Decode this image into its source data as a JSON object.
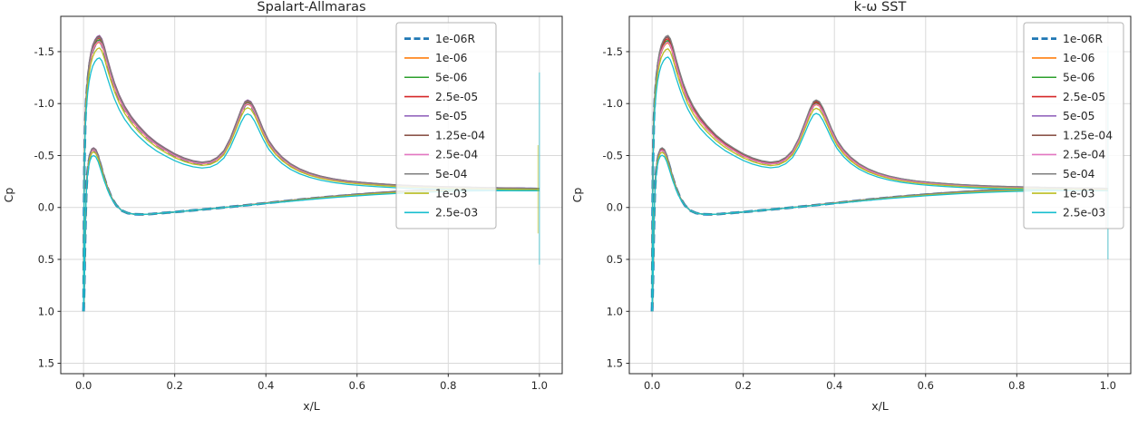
{
  "chart_data": [
    {
      "type": "line",
      "title": "Spalart-Allmaras",
      "xlabel": "x/L",
      "ylabel": "Cp",
      "grid": true,
      "y_inverted": true,
      "xlim": [
        -0.05,
        1.05
      ],
      "ylim": [
        -1.84,
        1.6
      ],
      "xticks": [
        0.0,
        0.2,
        0.4,
        0.6,
        0.8,
        1.0
      ],
      "xtick_labels": [
        "0.0",
        "0.2",
        "0.4",
        "0.6",
        "0.8",
        "1.0"
      ],
      "yticks": [
        -1.5,
        -1.0,
        -0.5,
        0.0,
        0.5,
        1.0,
        1.5
      ],
      "ytick_labels": [
        "-1.5",
        "-1.0",
        "-0.5",
        "0.0",
        "0.5",
        "1.0",
        "1.5"
      ],
      "legend": {
        "loc": "upper right",
        "right_gap": 73,
        "top_gap": 7
      },
      "series": [
        {
          "name": "1e-06R",
          "color": "#1f77b4",
          "line_style": "dashed",
          "line_width": 2.8,
          "scale": 1.0
        },
        {
          "name": "1e-06",
          "color": "#ff7f0e",
          "line_style": "solid",
          "line_width": 1.3,
          "scale": 0.995
        },
        {
          "name": "5e-06",
          "color": "#2ca02c",
          "line_style": "solid",
          "line_width": 1.3,
          "scale": 1.01
        },
        {
          "name": "2.5e-05",
          "color": "#d62728",
          "line_style": "solid",
          "line_width": 1.3,
          "scale": 1.02
        },
        {
          "name": "5e-05",
          "color": "#9467bd",
          "line_style": "solid",
          "line_width": 1.3,
          "scale": 1.035
        },
        {
          "name": "1.25e-04",
          "color": "#8c564b",
          "line_style": "solid",
          "line_width": 1.3,
          "scale": 1.03
        },
        {
          "name": "2.5e-04",
          "color": "#e377c2",
          "line_style": "solid",
          "line_width": 1.3,
          "scale": 1.0
        },
        {
          "name": "5e-04",
          "color": "#7f7f7f",
          "line_style": "solid",
          "line_width": 1.3,
          "scale": 1.025
        },
        {
          "name": "1e-03",
          "color": "#bcbd22",
          "line_style": "solid",
          "line_width": 1.3,
          "scale": 0.96
        },
        {
          "name": "2.5e-03",
          "color": "#17becf",
          "line_style": "solid",
          "line_width": 1.3,
          "scale": 0.9
        }
      ],
      "curves": {
        "upper": [
          [
            0.0,
            1.0
          ],
          [
            0.0005,
            0.55
          ],
          [
            0.001,
            0.1
          ],
          [
            0.002,
            -0.45
          ],
          [
            0.004,
            -0.85
          ],
          [
            0.006,
            -1.05
          ],
          [
            0.009,
            -1.22
          ],
          [
            0.012,
            -1.34
          ],
          [
            0.016,
            -1.44
          ],
          [
            0.02,
            -1.51
          ],
          [
            0.025,
            -1.56
          ],
          [
            0.03,
            -1.59
          ],
          [
            0.035,
            -1.6
          ],
          [
            0.04,
            -1.57
          ],
          [
            0.046,
            -1.49
          ],
          [
            0.052,
            -1.39
          ],
          [
            0.06,
            -1.27
          ],
          [
            0.068,
            -1.16
          ],
          [
            0.078,
            -1.05
          ],
          [
            0.09,
            -0.945
          ],
          [
            0.105,
            -0.845
          ],
          [
            0.12,
            -0.765
          ],
          [
            0.14,
            -0.675
          ],
          [
            0.16,
            -0.605
          ],
          [
            0.18,
            -0.55
          ],
          [
            0.2,
            -0.5
          ],
          [
            0.22,
            -0.462
          ],
          [
            0.24,
            -0.435
          ],
          [
            0.26,
            -0.422
          ],
          [
            0.278,
            -0.432
          ],
          [
            0.293,
            -0.465
          ],
          [
            0.308,
            -0.53
          ],
          [
            0.322,
            -0.645
          ],
          [
            0.335,
            -0.79
          ],
          [
            0.346,
            -0.915
          ],
          [
            0.354,
            -0.985
          ],
          [
            0.36,
            -1.0
          ],
          [
            0.367,
            -0.985
          ],
          [
            0.375,
            -0.925
          ],
          [
            0.384,
            -0.835
          ],
          [
            0.394,
            -0.73
          ],
          [
            0.406,
            -0.625
          ],
          [
            0.42,
            -0.54
          ],
          [
            0.436,
            -0.468
          ],
          [
            0.454,
            -0.408
          ],
          [
            0.474,
            -0.36
          ],
          [
            0.496,
            -0.322
          ],
          [
            0.52,
            -0.292
          ],
          [
            0.548,
            -0.267
          ],
          [
            0.578,
            -0.248
          ],
          [
            0.61,
            -0.234
          ],
          [
            0.645,
            -0.222
          ],
          [
            0.685,
            -0.211
          ],
          [
            0.73,
            -0.202
          ],
          [
            0.78,
            -0.195
          ],
          [
            0.83,
            -0.19
          ],
          [
            0.885,
            -0.185
          ],
          [
            0.94,
            -0.181
          ],
          [
            1.0,
            -0.178
          ]
        ],
        "lower": [
          [
            0.0,
            1.0
          ],
          [
            0.0008,
            0.92
          ],
          [
            0.0018,
            0.72
          ],
          [
            0.003,
            0.42
          ],
          [
            0.0045,
            0.1
          ],
          [
            0.006,
            -0.14
          ],
          [
            0.008,
            -0.31
          ],
          [
            0.011,
            -0.43
          ],
          [
            0.014,
            -0.5
          ],
          [
            0.018,
            -0.545
          ],
          [
            0.022,
            -0.555
          ],
          [
            0.027,
            -0.54
          ],
          [
            0.032,
            -0.49
          ],
          [
            0.038,
            -0.4
          ],
          [
            0.045,
            -0.29
          ],
          [
            0.053,
            -0.185
          ],
          [
            0.062,
            -0.09
          ],
          [
            0.072,
            -0.02
          ],
          [
            0.084,
            0.03
          ],
          [
            0.097,
            0.055
          ],
          [
            0.112,
            0.065
          ],
          [
            0.13,
            0.067
          ],
          [
            0.15,
            0.062
          ],
          [
            0.175,
            0.053
          ],
          [
            0.205,
            0.042
          ],
          [
            0.24,
            0.028
          ],
          [
            0.28,
            0.012
          ],
          [
            0.32,
            -0.005
          ],
          [
            0.36,
            -0.023
          ],
          [
            0.4,
            -0.042
          ],
          [
            0.44,
            -0.06
          ],
          [
            0.48,
            -0.078
          ],
          [
            0.52,
            -0.095
          ],
          [
            0.56,
            -0.11
          ],
          [
            0.6,
            -0.124
          ],
          [
            0.64,
            -0.137
          ],
          [
            0.68,
            -0.148
          ],
          [
            0.72,
            -0.158
          ],
          [
            0.76,
            -0.165
          ],
          [
            0.8,
            -0.171
          ],
          [
            0.845,
            -0.176
          ],
          [
            0.89,
            -0.179
          ],
          [
            0.94,
            -0.18
          ],
          [
            1.0,
            -0.178
          ]
        ]
      },
      "artifacts": [
        {
          "series": "2.5e-03",
          "x": 1.0,
          "cp_span": [
            -1.3,
            0.55
          ]
        },
        {
          "series": "1e-03",
          "x": 0.997,
          "cp_span": [
            -0.6,
            0.25
          ]
        }
      ]
    },
    {
      "type": "line",
      "title": "k-ω SST",
      "xlabel": "x/L",
      "ylabel": "Cp",
      "grid": true,
      "y_inverted": true,
      "xlim": [
        -0.05,
        1.05
      ],
      "ylim": [
        -1.84,
        1.6
      ],
      "xticks": [
        0.0,
        0.2,
        0.4,
        0.6,
        0.8,
        1.0
      ],
      "xtick_labels": [
        "0.0",
        "0.2",
        "0.4",
        "0.6",
        "0.8",
        "1.0"
      ],
      "yticks": [
        -1.5,
        -1.0,
        -0.5,
        0.0,
        0.5,
        1.0,
        1.5
      ],
      "ytick_labels": [
        "-1.5",
        "-1.0",
        "-0.5",
        "0.0",
        "0.5",
        "1.0",
        "1.5"
      ],
      "legend": {
        "loc": "upper right",
        "right_gap": 8,
        "top_gap": 7
      },
      "series": [
        {
          "name": "1e-06R",
          "color": "#1f77b4",
          "line_style": "dashed",
          "line_width": 2.8,
          "scale": 1.0
        },
        {
          "name": "1e-06",
          "color": "#ff7f0e",
          "line_style": "solid",
          "line_width": 1.3,
          "scale": 0.99
        },
        {
          "name": "5e-06",
          "color": "#2ca02c",
          "line_style": "solid",
          "line_width": 1.3,
          "scale": 1.005
        },
        {
          "name": "2.5e-05",
          "color": "#d62728",
          "line_style": "solid",
          "line_width": 1.3,
          "scale": 1.015
        },
        {
          "name": "5e-05",
          "color": "#9467bd",
          "line_style": "solid",
          "line_width": 1.3,
          "scale": 1.03
        },
        {
          "name": "1.25e-04",
          "color": "#8c564b",
          "line_style": "solid",
          "line_width": 1.3,
          "scale": 1.025
        },
        {
          "name": "2.5e-04",
          "color": "#e377c2",
          "line_style": "solid",
          "line_width": 1.3,
          "scale": 0.995
        },
        {
          "name": "5e-04",
          "color": "#7f7f7f",
          "line_style": "solid",
          "line_width": 1.3,
          "scale": 1.035
        },
        {
          "name": "1e-03",
          "color": "#bcbd22",
          "line_style": "solid",
          "line_width": 1.3,
          "scale": 0.955
        },
        {
          "name": "2.5e-03",
          "color": "#17becf",
          "line_style": "solid",
          "line_width": 1.3,
          "scale": 0.905
        }
      ],
      "curves": {
        "upper": [
          [
            0.0,
            1.0
          ],
          [
            0.0005,
            0.55
          ],
          [
            0.001,
            0.1
          ],
          [
            0.002,
            -0.45
          ],
          [
            0.004,
            -0.85
          ],
          [
            0.006,
            -1.05
          ],
          [
            0.009,
            -1.22
          ],
          [
            0.012,
            -1.34
          ],
          [
            0.016,
            -1.44
          ],
          [
            0.02,
            -1.51
          ],
          [
            0.025,
            -1.56
          ],
          [
            0.03,
            -1.59
          ],
          [
            0.035,
            -1.6
          ],
          [
            0.04,
            -1.57
          ],
          [
            0.046,
            -1.49
          ],
          [
            0.052,
            -1.39
          ],
          [
            0.06,
            -1.27
          ],
          [
            0.068,
            -1.16
          ],
          [
            0.078,
            -1.05
          ],
          [
            0.09,
            -0.945
          ],
          [
            0.105,
            -0.845
          ],
          [
            0.12,
            -0.765
          ],
          [
            0.14,
            -0.675
          ],
          [
            0.16,
            -0.605
          ],
          [
            0.18,
            -0.55
          ],
          [
            0.2,
            -0.5
          ],
          [
            0.22,
            -0.462
          ],
          [
            0.24,
            -0.435
          ],
          [
            0.26,
            -0.422
          ],
          [
            0.278,
            -0.432
          ],
          [
            0.293,
            -0.465
          ],
          [
            0.308,
            -0.53
          ],
          [
            0.322,
            -0.645
          ],
          [
            0.335,
            -0.79
          ],
          [
            0.346,
            -0.915
          ],
          [
            0.354,
            -0.985
          ],
          [
            0.36,
            -1.0
          ],
          [
            0.367,
            -0.985
          ],
          [
            0.375,
            -0.925
          ],
          [
            0.384,
            -0.835
          ],
          [
            0.394,
            -0.73
          ],
          [
            0.406,
            -0.625
          ],
          [
            0.42,
            -0.54
          ],
          [
            0.436,
            -0.468
          ],
          [
            0.454,
            -0.408
          ],
          [
            0.474,
            -0.36
          ],
          [
            0.496,
            -0.322
          ],
          [
            0.52,
            -0.292
          ],
          [
            0.548,
            -0.267
          ],
          [
            0.578,
            -0.248
          ],
          [
            0.61,
            -0.234
          ],
          [
            0.645,
            -0.222
          ],
          [
            0.685,
            -0.211
          ],
          [
            0.73,
            -0.202
          ],
          [
            0.78,
            -0.195
          ],
          [
            0.83,
            -0.19
          ],
          [
            0.885,
            -0.185
          ],
          [
            0.94,
            -0.181
          ],
          [
            1.0,
            -0.178
          ]
        ],
        "lower": [
          [
            0.0,
            1.0
          ],
          [
            0.0008,
            0.92
          ],
          [
            0.0018,
            0.72
          ],
          [
            0.003,
            0.42
          ],
          [
            0.0045,
            0.1
          ],
          [
            0.006,
            -0.14
          ],
          [
            0.008,
            -0.31
          ],
          [
            0.011,
            -0.43
          ],
          [
            0.014,
            -0.5
          ],
          [
            0.018,
            -0.545
          ],
          [
            0.022,
            -0.555
          ],
          [
            0.027,
            -0.54
          ],
          [
            0.032,
            -0.49
          ],
          [
            0.038,
            -0.4
          ],
          [
            0.045,
            -0.29
          ],
          [
            0.053,
            -0.185
          ],
          [
            0.062,
            -0.09
          ],
          [
            0.072,
            -0.02
          ],
          [
            0.084,
            0.03
          ],
          [
            0.097,
            0.055
          ],
          [
            0.112,
            0.065
          ],
          [
            0.13,
            0.067
          ],
          [
            0.15,
            0.062
          ],
          [
            0.175,
            0.053
          ],
          [
            0.205,
            0.042
          ],
          [
            0.24,
            0.028
          ],
          [
            0.28,
            0.012
          ],
          [
            0.32,
            -0.005
          ],
          [
            0.36,
            -0.023
          ],
          [
            0.4,
            -0.042
          ],
          [
            0.44,
            -0.06
          ],
          [
            0.48,
            -0.078
          ],
          [
            0.52,
            -0.095
          ],
          [
            0.56,
            -0.11
          ],
          [
            0.6,
            -0.124
          ],
          [
            0.64,
            -0.137
          ],
          [
            0.68,
            -0.148
          ],
          [
            0.72,
            -0.158
          ],
          [
            0.76,
            -0.165
          ],
          [
            0.8,
            -0.171
          ],
          [
            0.845,
            -0.176
          ],
          [
            0.89,
            -0.179
          ],
          [
            0.94,
            -0.18
          ],
          [
            1.0,
            -0.178
          ]
        ]
      },
      "artifacts": [
        {
          "series": "2.5e-03",
          "x": 1.0,
          "cp_span": [
            -1.55,
            0.5
          ]
        },
        {
          "series": "5e-04",
          "x": 0.996,
          "cp_span": [
            -1.1,
            0.2
          ]
        }
      ]
    }
  ],
  "colors": {
    "grid": "#d9d9d9",
    "spine": "#262626",
    "legend_border": "#b3b3b3",
    "legend_bg": "#ffffff"
  }
}
